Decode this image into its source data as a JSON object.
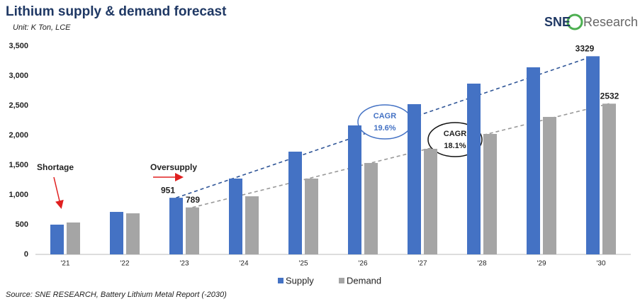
{
  "chart_data": {
    "type": "bar",
    "title": "Lithium supply & demand forecast",
    "subtitle": "Unit: K Ton, LCE",
    "source": "Source: SNE RESEARCH, Battery Lithium Metal Report (-2030)",
    "logo": {
      "brand": "SNE",
      "name": "Research"
    },
    "categories": [
      "'21",
      "'22",
      "'23",
      "'24",
      "'25",
      "'26",
      "'27",
      "'28",
      "'29",
      "'30"
    ],
    "series": [
      {
        "name": "Supply",
        "color": "#4472c4",
        "values": [
          500,
          714,
          951,
          1274,
          1726,
          2167,
          2524,
          2869,
          3143,
          3329
        ],
        "value_labels": [
          null,
          null,
          "951",
          null,
          null,
          null,
          null,
          null,
          null,
          "3329"
        ]
      },
      {
        "name": "Demand",
        "color": "#a5a5a5",
        "values": [
          536,
          690,
          789,
          976,
          1274,
          1536,
          1774,
          2024,
          2310,
          2532
        ],
        "value_labels": [
          null,
          null,
          "789",
          null,
          null,
          null,
          null,
          null,
          null,
          "2532"
        ]
      }
    ],
    "ylim": [
      0,
      3500
    ],
    "yticks": [
      0,
      500,
      {
        "value": 1000,
        "label": "1,000"
      },
      {
        "value": 1500,
        "label": "1,500"
      },
      {
        "value": 2000,
        "label": "2,000"
      },
      {
        "value": 2500,
        "label": "2,500"
      },
      {
        "value": 3000,
        "label": "3,000"
      },
      {
        "value": 3500,
        "label": "3,500"
      }
    ],
    "grid": false,
    "legend": "bottom",
    "annotations": {
      "shortage": "Shortage",
      "oversupply": "Oversupply",
      "supply_cagr": {
        "title": "CAGR",
        "value": "19.6%"
      },
      "demand_cagr": {
        "title": "CAGR",
        "value": "18.1%"
      }
    }
  }
}
